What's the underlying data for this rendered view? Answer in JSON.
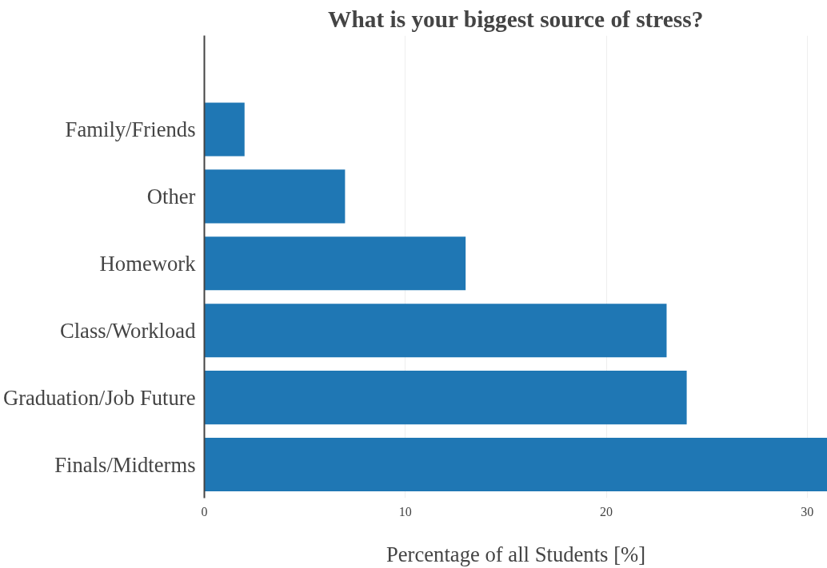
{
  "chart_data": {
    "type": "bar",
    "orientation": "horizontal",
    "title": "What is your biggest source of stress?",
    "xlabel": "Percentage of all Students [%]",
    "categories": [
      "Family/Friends",
      "Other",
      "Homework",
      "Class/Workload",
      "Graduation/Job Future",
      "Finals/Midterms"
    ],
    "values": [
      2,
      7,
      13,
      23,
      24,
      31
    ],
    "color": "#1f77b4",
    "xlim": [
      0,
      31
    ],
    "xticks": [
      0,
      10,
      20,
      30
    ],
    "grid": "x"
  }
}
